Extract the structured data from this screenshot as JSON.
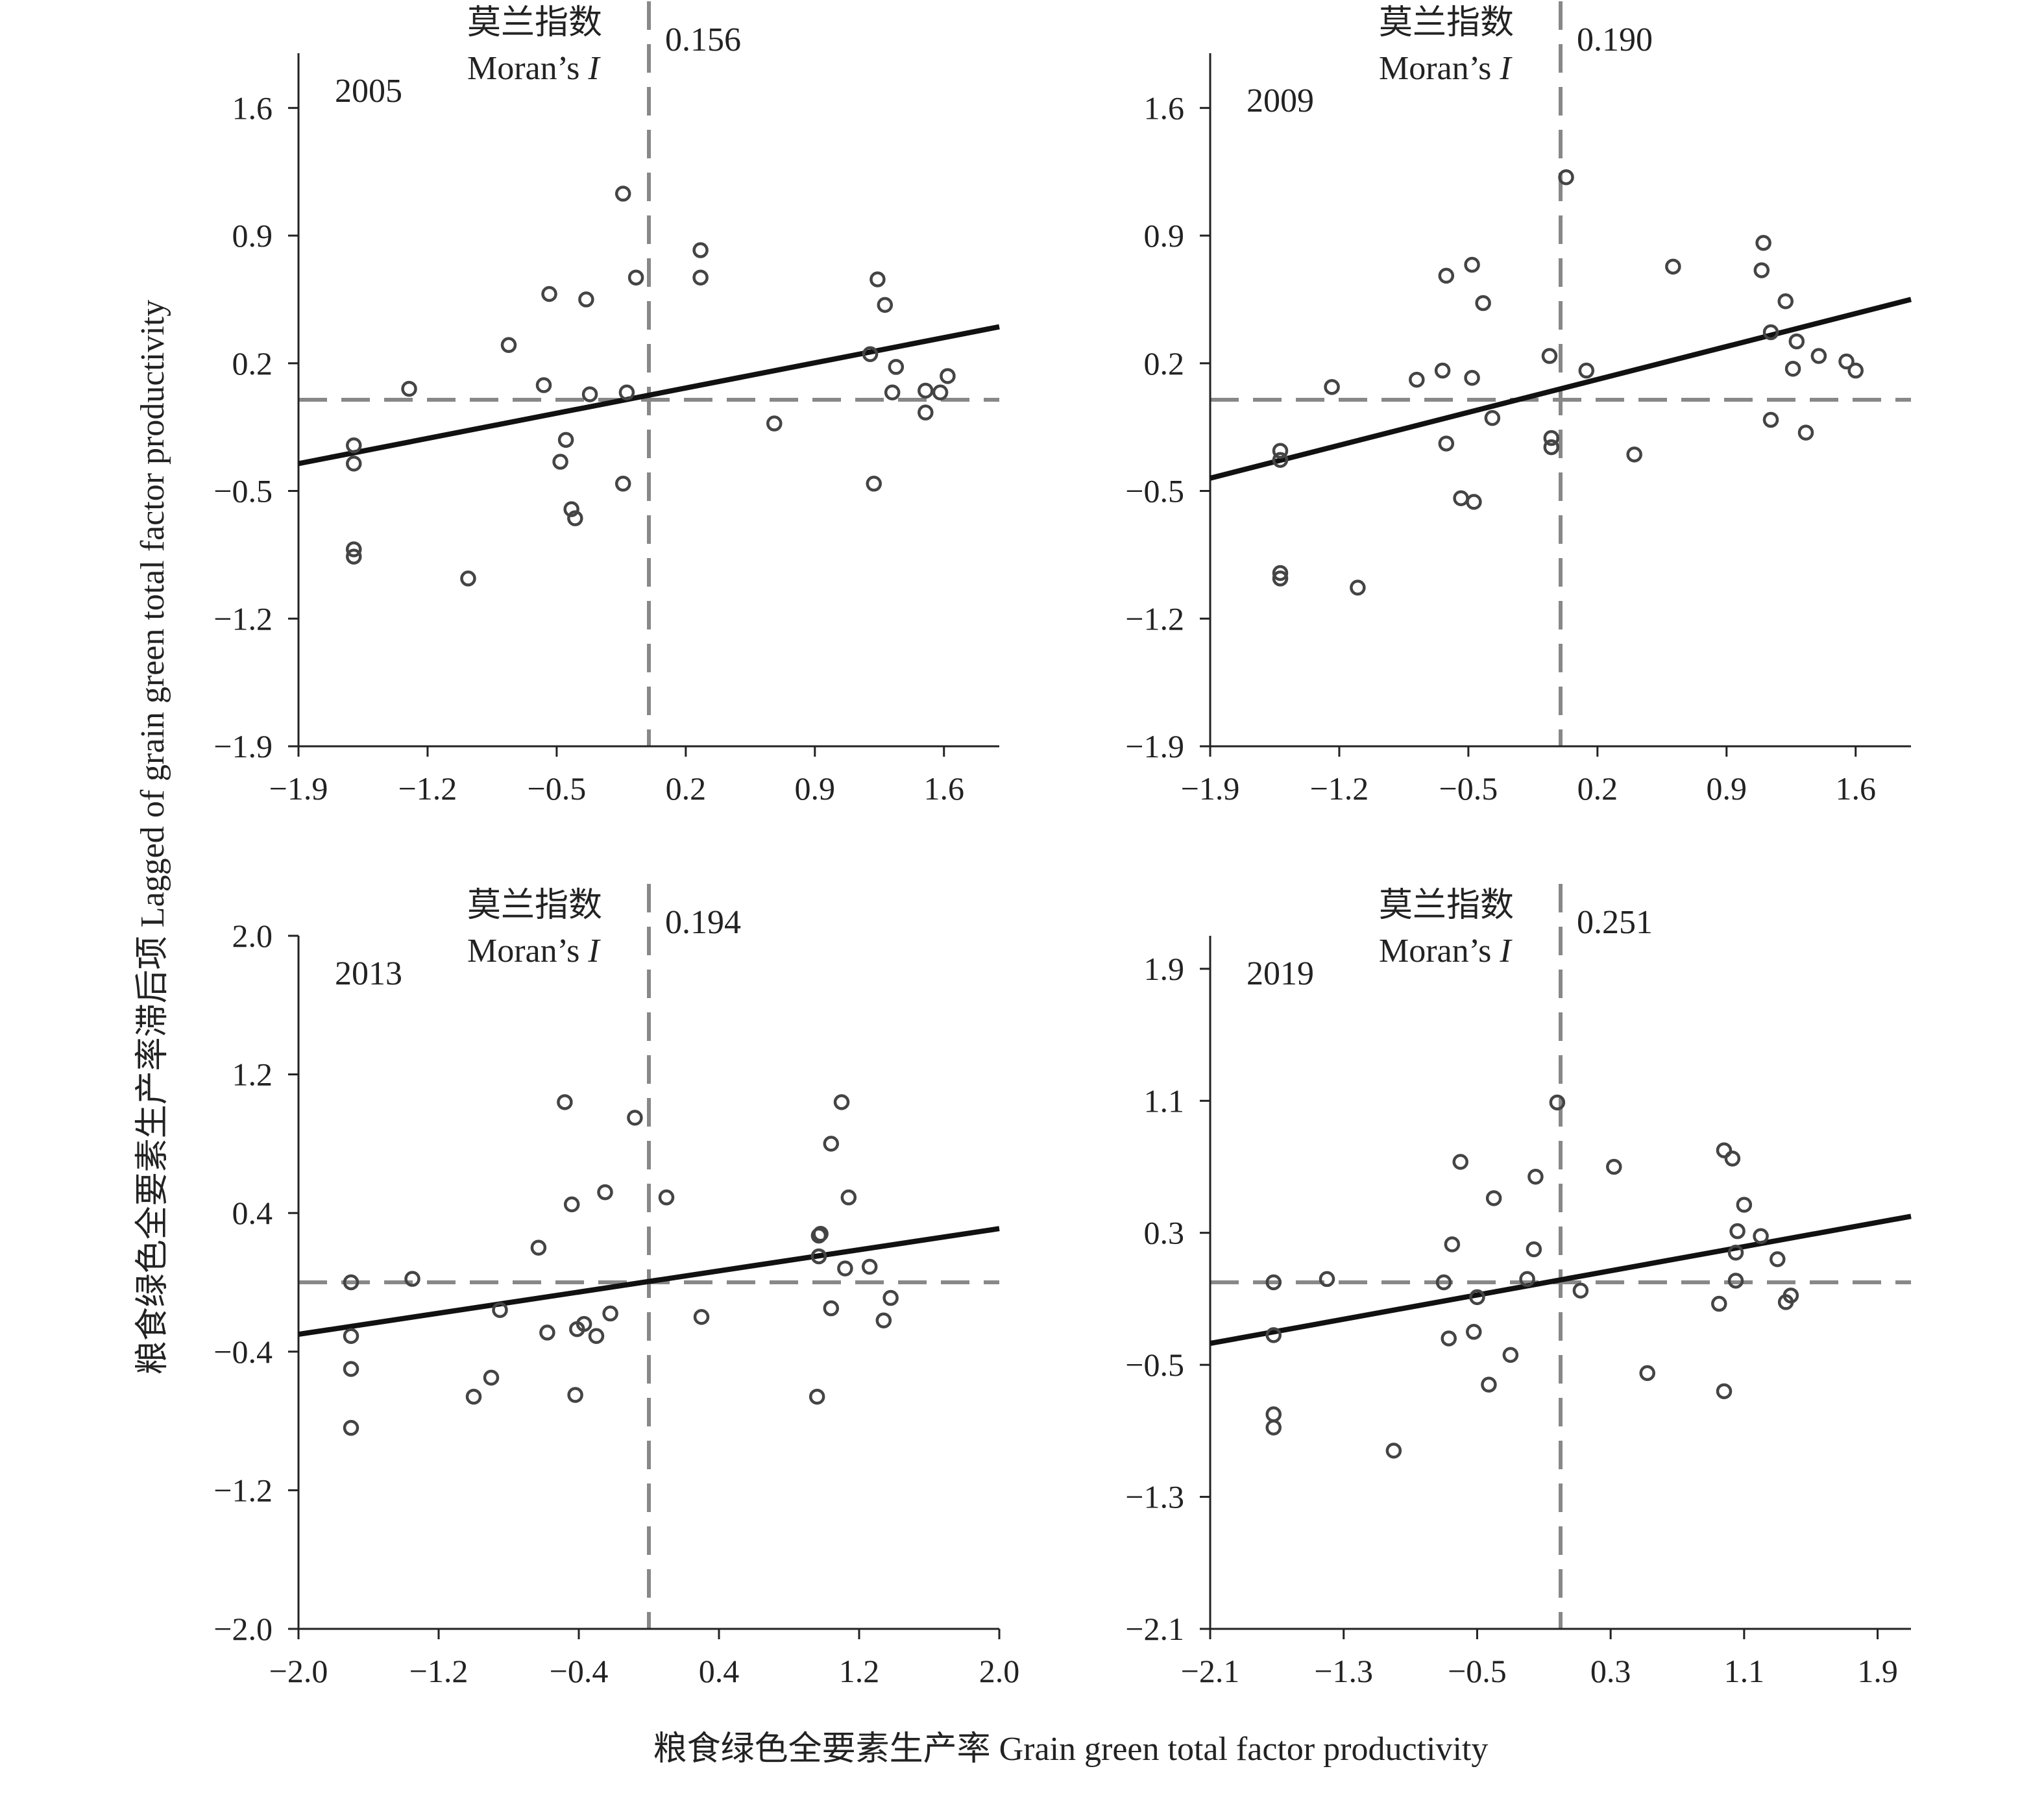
{
  "xlabel": "粮食绿色全要素生产率 Grain green total factor productivity",
  "ylabel": "粮食绿色全要素生产率滞后项 Lagged of grain green total factor productivity",
  "moran_label_cn": "莫兰指数",
  "moran_label_en": "Moran’s",
  "moran_symbol": "I",
  "colors": {
    "axis": "#222222",
    "dashed": "#888888",
    "point": "#444444",
    "line": "#111111"
  },
  "chart_data": [
    {
      "type": "scatter",
      "panel": "2005",
      "year": "2005",
      "moran_i": "0.156",
      "xlim": [
        -1.9,
        1.9
      ],
      "ylim": [
        -1.9,
        1.9
      ],
      "xticks": [
        "−1.9",
        "−1.2",
        "−0.5",
        "0.2",
        "0.9",
        "1.6"
      ],
      "yticks": [
        "1.6",
        "0.9",
        "0.2",
        "−0.5",
        "−1.2",
        "−1.9"
      ],
      "xtick_values": [
        -1.9,
        -1.2,
        -0.5,
        0.2,
        0.9,
        1.6
      ],
      "ytick_values": [
        1.6,
        0.9,
        0.2,
        -0.5,
        -1.2,
        -1.9
      ],
      "quadrant_x": 0.0,
      "quadrant_y": 0.0,
      "fit_line": [
        [
          -1.9,
          -0.35
        ],
        [
          1.9,
          0.4
        ]
      ],
      "points": [
        [
          -1.6,
          -0.25
        ],
        [
          -1.6,
          -0.35
        ],
        [
          -1.6,
          -0.82
        ],
        [
          -1.6,
          -0.86
        ],
        [
          -1.3,
          0.06
        ],
        [
          -0.98,
          -0.98
        ],
        [
          -0.76,
          0.3
        ],
        [
          -0.57,
          0.08
        ],
        [
          -0.54,
          0.58
        ],
        [
          -0.48,
          -0.34
        ],
        [
          -0.45,
          -0.22
        ],
        [
          -0.42,
          -0.6
        ],
        [
          -0.4,
          -0.65
        ],
        [
          -0.34,
          0.55
        ],
        [
          -0.32,
          0.03
        ],
        [
          -0.14,
          1.13
        ],
        [
          -0.12,
          0.04
        ],
        [
          -0.14,
          -0.46
        ],
        [
          -0.07,
          0.67
        ],
        [
          0.28,
          0.82
        ],
        [
          0.28,
          0.67
        ],
        [
          0.68,
          -0.13
        ],
        [
          1.22,
          -0.46
        ],
        [
          1.2,
          0.25
        ],
        [
          1.24,
          0.66
        ],
        [
          1.28,
          0.52
        ],
        [
          1.32,
          0.04
        ],
        [
          1.34,
          0.18
        ],
        [
          1.5,
          0.05
        ],
        [
          1.5,
          -0.07
        ],
        [
          1.58,
          0.04
        ],
        [
          1.62,
          0.13
        ]
      ]
    },
    {
      "type": "scatter",
      "panel": "2009",
      "year": "2009",
      "moran_i": "0.190",
      "xlim": [
        -1.9,
        1.9
      ],
      "ylim": [
        -1.9,
        1.9
      ],
      "xticks": [
        "−1.9",
        "−1.2",
        "−0.5",
        "0.2",
        "0.9",
        "1.6"
      ],
      "yticks": [
        "1.6",
        "0.9",
        "0.2",
        "−0.5",
        "−1.2",
        "−1.9"
      ],
      "xtick_values": [
        -1.9,
        -1.2,
        -0.5,
        0.2,
        0.9,
        1.6
      ],
      "ytick_values": [
        1.6,
        0.9,
        0.2,
        -0.5,
        -1.2,
        -1.9
      ],
      "quadrant_x": 0.0,
      "quadrant_y": 0.0,
      "fit_line": [
        [
          -1.9,
          -0.43
        ],
        [
          1.9,
          0.55
        ]
      ],
      "points": [
        [
          -1.52,
          -0.28
        ],
        [
          -1.52,
          -0.33
        ],
        [
          -1.52,
          -0.95
        ],
        [
          -1.52,
          -0.98
        ],
        [
          -1.24,
          0.07
        ],
        [
          -1.1,
          -1.03
        ],
        [
          -0.78,
          0.11
        ],
        [
          -0.64,
          0.16
        ],
        [
          -0.62,
          0.68
        ],
        [
          -0.62,
          -0.24
        ],
        [
          -0.54,
          -0.54
        ],
        [
          -0.48,
          0.74
        ],
        [
          -0.48,
          0.12
        ],
        [
          -0.47,
          -0.56
        ],
        [
          -0.42,
          0.53
        ],
        [
          -0.37,
          -0.1
        ],
        [
          -0.06,
          0.24
        ],
        [
          -0.05,
          -0.21
        ],
        [
          -0.05,
          -0.26
        ],
        [
          0.03,
          1.22
        ],
        [
          0.14,
          0.16
        ],
        [
          0.4,
          -0.3
        ],
        [
          0.61,
          0.73
        ],
        [
          1.09,
          0.71
        ],
        [
          1.1,
          0.86
        ],
        [
          1.14,
          0.37
        ],
        [
          1.14,
          -0.11
        ],
        [
          1.22,
          0.54
        ],
        [
          1.26,
          0.17
        ],
        [
          1.28,
          0.32
        ],
        [
          1.33,
          -0.18
        ],
        [
          1.4,
          0.24
        ],
        [
          1.55,
          0.21
        ],
        [
          1.6,
          0.16
        ]
      ]
    },
    {
      "type": "scatter",
      "panel": "2013",
      "year": "2013",
      "moran_i": "0.194",
      "xlim": [
        -2.0,
        2.0
      ],
      "ylim": [
        -2.0,
        2.0
      ],
      "xticks": [
        "−2.0",
        "−1.2",
        "−0.4",
        "0.4",
        "1.2",
        "2.0"
      ],
      "yticks": [
        "2.0",
        "1.2",
        "0.4",
        "−0.4",
        "−1.2",
        "−2.0"
      ],
      "xtick_values": [
        -2.0,
        -1.2,
        -0.4,
        0.4,
        1.2,
        2.0
      ],
      "ytick_values": [
        2.0,
        1.2,
        0.4,
        -0.4,
        -1.2,
        -2.0
      ],
      "quadrant_x": 0.0,
      "quadrant_y": 0.0,
      "fit_line": [
        [
          -2.0,
          -0.3
        ],
        [
          2.0,
          0.31
        ]
      ],
      "points": [
        [
          -1.7,
          0.0
        ],
        [
          -1.7,
          -0.31
        ],
        [
          -1.7,
          -0.5
        ],
        [
          -1.7,
          -0.84
        ],
        [
          -1.35,
          0.02
        ],
        [
          -1.0,
          -0.66
        ],
        [
          -0.9,
          -0.55
        ],
        [
          -0.85,
          -0.16
        ],
        [
          -0.63,
          0.2
        ],
        [
          -0.58,
          -0.29
        ],
        [
          -0.48,
          1.04
        ],
        [
          -0.44,
          0.45
        ],
        [
          -0.42,
          -0.65
        ],
        [
          -0.41,
          -0.27
        ],
        [
          -0.37,
          -0.24
        ],
        [
          -0.3,
          -0.31
        ],
        [
          -0.25,
          0.52
        ],
        [
          -0.22,
          -0.18
        ],
        [
          -0.08,
          0.95
        ],
        [
          0.1,
          0.49
        ],
        [
          0.3,
          -0.2
        ],
        [
          0.96,
          -0.66
        ],
        [
          0.97,
          0.15
        ],
        [
          0.97,
          0.27
        ],
        [
          0.98,
          0.28
        ],
        [
          1.04,
          -0.15
        ],
        [
          1.04,
          0.8
        ],
        [
          1.1,
          1.04
        ],
        [
          1.12,
          0.08
        ],
        [
          1.14,
          0.49
        ],
        [
          1.26,
          0.09
        ],
        [
          1.34,
          -0.22
        ],
        [
          1.38,
          -0.09
        ]
      ]
    },
    {
      "type": "scatter",
      "panel": "2019",
      "year": "2019",
      "moran_i": "0.251",
      "xlim": [
        -2.1,
        2.1
      ],
      "ylim": [
        -2.1,
        2.1
      ],
      "xticks": [
        "−2.1",
        "−1.3",
        "−0.5",
        "0.3",
        "1.1",
        "1.9"
      ],
      "yticks": [
        "1.9",
        "1.1",
        "0.3",
        "−0.5",
        "−1.3",
        "−2.1"
      ],
      "xtick_values": [
        -2.1,
        -1.3,
        -0.5,
        0.3,
        1.1,
        1.9
      ],
      "ytick_values": [
        1.9,
        1.1,
        0.3,
        -0.5,
        -1.3,
        -2.1
      ],
      "quadrant_x": 0.0,
      "quadrant_y": 0.0,
      "fit_line": [
        [
          -2.1,
          -0.37
        ],
        [
          2.1,
          0.4
        ]
      ],
      "points": [
        [
          -1.72,
          0.0
        ],
        [
          -1.72,
          -0.32
        ],
        [
          -1.72,
          -0.8
        ],
        [
          -1.72,
          -0.88
        ],
        [
          -1.4,
          0.02
        ],
        [
          -1.0,
          -1.02
        ],
        [
          -0.7,
          0.0
        ],
        [
          -0.67,
          -0.34
        ],
        [
          -0.65,
          0.23
        ],
        [
          -0.6,
          0.73
        ],
        [
          -0.52,
          -0.3
        ],
        [
          -0.5,
          -0.09
        ],
        [
          -0.43,
          -0.62
        ],
        [
          -0.4,
          0.51
        ],
        [
          -0.3,
          -0.44
        ],
        [
          -0.2,
          0.02
        ],
        [
          -0.16,
          0.2
        ],
        [
          -0.15,
          0.64
        ],
        [
          -0.02,
          1.09
        ],
        [
          0.12,
          -0.05
        ],
        [
          0.32,
          0.7
        ],
        [
          0.52,
          -0.55
        ],
        [
          0.95,
          -0.13
        ],
        [
          0.98,
          0.8
        ],
        [
          0.98,
          -0.66
        ],
        [
          1.03,
          0.75
        ],
        [
          1.05,
          0.01
        ],
        [
          1.05,
          0.18
        ],
        [
          1.06,
          0.31
        ],
        [
          1.1,
          0.47
        ],
        [
          1.2,
          0.28
        ],
        [
          1.3,
          0.14
        ],
        [
          1.35,
          -0.12
        ],
        [
          1.38,
          -0.08
        ]
      ]
    }
  ]
}
